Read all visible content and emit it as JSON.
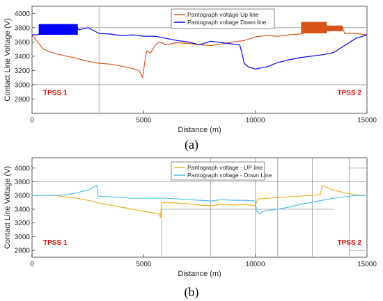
{
  "chart_data": [
    {
      "type": "line",
      "panel": "a",
      "xlabel": "Distance (m)",
      "ylabel": "Contact Line Voltage (V)",
      "xlim": [
        0,
        15000
      ],
      "ylim": [
        2600,
        4100
      ],
      "xticks": [
        0,
        5000,
        10000,
        15000
      ],
      "yticks": [
        2800,
        3000,
        3200,
        3400,
        3600,
        3800,
        4000
      ],
      "legend_position": "top-center",
      "grid": false,
      "annotations": [
        {
          "text": "TPSS 1",
          "x": 500,
          "y": 2860
        },
        {
          "text": "TPSS 2",
          "x": 14300,
          "y": 2860
        }
      ],
      "reference_lines": [
        {
          "orientation": "horizontal",
          "y": 3800,
          "x_from": 2100,
          "x_to": 15000
        },
        {
          "orientation": "horizontal",
          "y": 3000,
          "x_from": 0,
          "x_to": 15000
        },
        {
          "orientation": "vertical",
          "x": 3000,
          "y_from": 2600,
          "y_to": 4100
        }
      ],
      "series": [
        {
          "name": "Pantograph voltage Up line",
          "color": "#d95319",
          "x": [
            0,
            500,
            1000,
            2000,
            2500,
            3000,
            3500,
            4000,
            4500,
            4800,
            4950,
            5000,
            5100,
            5150,
            5300,
            5500,
            5700,
            6000,
            6500,
            7000,
            7500,
            8000,
            8500,
            9000,
            9500,
            9800,
            10000,
            10500,
            11000,
            11500,
            12000,
            12500,
            13000,
            13500,
            13900,
            14000,
            14500,
            15000
          ],
          "values": [
            3700,
            3500,
            3440,
            3370,
            3330,
            3300,
            3290,
            3260,
            3230,
            3200,
            3100,
            3210,
            3420,
            3480,
            3440,
            3550,
            3600,
            3560,
            3590,
            3580,
            3560,
            3550,
            3570,
            3600,
            3620,
            3650,
            3670,
            3690,
            3680,
            3700,
            3710,
            3750,
            3780,
            3790,
            3810,
            3720,
            3720,
            3700
          ],
          "bands": [
            {
              "x_from": 12050,
              "x_to": 13200,
              "min": 3720,
              "max": 3880
            },
            {
              "x_from": 13200,
              "x_to": 13900,
              "min": 3750,
              "max": 3830
            }
          ]
        },
        {
          "name": "Pantograph voltage Down line",
          "color": "#0000ff",
          "x": [
            0,
            200,
            2000,
            2100,
            2500,
            3000,
            3500,
            4000,
            4500,
            5000,
            5500,
            6000,
            6500,
            7000,
            7500,
            8000,
            8500,
            9000,
            9300,
            9400,
            9500,
            9700,
            10000,
            10500,
            11000,
            11500,
            12000,
            12500,
            13000,
            13500,
            14000,
            14500,
            15000
          ],
          "values": [
            3700,
            3700,
            3820,
            3770,
            3800,
            3720,
            3710,
            3690,
            3700,
            3680,
            3680,
            3650,
            3620,
            3600,
            3560,
            3610,
            3590,
            3570,
            3560,
            3450,
            3300,
            3250,
            3220,
            3250,
            3310,
            3350,
            3380,
            3400,
            3420,
            3450,
            3550,
            3650,
            3700
          ],
          "bands": [
            {
              "x_from": 300,
              "x_to": 2050,
              "min": 3700,
              "max": 3850
            }
          ]
        }
      ]
    },
    {
      "type": "line",
      "panel": "b",
      "xlabel": "Distance (m)",
      "ylabel": "Contact Line Voltage (V)",
      "xlim": [
        0,
        15000
      ],
      "ylim": [
        2700,
        4150
      ],
      "xticks": [
        0,
        5000,
        10000,
        15000
      ],
      "yticks": [
        2800,
        3000,
        3200,
        3400,
        3600,
        3800,
        4000
      ],
      "legend_position": "top-center",
      "grid": false,
      "annotations": [
        {
          "text": "TPSS 1",
          "x": 500,
          "y": 2880
        },
        {
          "text": "TPSS 2",
          "x": 14300,
          "y": 2880
        }
      ],
      "reference_lines": [
        {
          "orientation": "horizontal",
          "y": 3800,
          "x_from": 0,
          "x_to": 15000
        },
        {
          "orientation": "horizontal",
          "y": 3400,
          "x_from": 5800,
          "x_to": 13500
        },
        {
          "orientation": "horizontal",
          "y": 4000,
          "x_from": 14200,
          "x_to": 15000
        },
        {
          "orientation": "horizontal",
          "y": 2800,
          "x_from": 14200,
          "x_to": 15000
        },
        {
          "orientation": "vertical",
          "x": 5800,
          "y_from": 2700,
          "y_to": 3400
        },
        {
          "orientation": "vertical",
          "x": 8000,
          "y_from": 2700,
          "y_to": 4150
        },
        {
          "orientation": "vertical",
          "x": 10000,
          "y_from": 2700,
          "y_to": 4150
        },
        {
          "orientation": "vertical",
          "x": 11000,
          "y_from": 2700,
          "y_to": 4150
        },
        {
          "orientation": "vertical",
          "x": 12550,
          "y_from": 2700,
          "y_to": 4150
        },
        {
          "orientation": "vertical",
          "x": 14200,
          "y_from": 2700,
          "y_to": 4150
        }
      ],
      "series": [
        {
          "name": "Pantograph voltage - UP line",
          "color": "#edb120",
          "x": [
            0,
            1000,
            1500,
            2000,
            2500,
            3000,
            3500,
            4000,
            4500,
            5000,
            5500,
            5700,
            5750,
            5800,
            6000,
            6500,
            7000,
            7500,
            8000,
            8500,
            9000,
            9500,
            10000,
            10100,
            10500,
            11000,
            11500,
            12000,
            12500,
            12900,
            13000,
            13500,
            14000,
            14500,
            15000
          ],
          "values": [
            3600,
            3600,
            3580,
            3560,
            3530,
            3490,
            3460,
            3430,
            3400,
            3370,
            3340,
            3330,
            3280,
            3490,
            3500,
            3490,
            3480,
            3460,
            3450,
            3470,
            3460,
            3470,
            3450,
            3550,
            3560,
            3570,
            3580,
            3590,
            3600,
            3610,
            3750,
            3680,
            3640,
            3610,
            3600
          ]
        },
        {
          "name": "Pantograph voltage - Down Line",
          "color": "#4dbeee",
          "x": [
            0,
            1000,
            1500,
            2000,
            2500,
            2900,
            2950,
            3000,
            3500,
            4000,
            4500,
            5000,
            5500,
            6000,
            6500,
            7000,
            7500,
            8000,
            8500,
            9000,
            9500,
            10000,
            10050,
            10200,
            10300,
            10500,
            11000,
            11500,
            12000,
            12500,
            13000,
            13500,
            14000,
            14500,
            15000
          ],
          "values": [
            3600,
            3600,
            3610,
            3640,
            3680,
            3750,
            3600,
            3590,
            3580,
            3570,
            3560,
            3560,
            3560,
            3560,
            3550,
            3540,
            3530,
            3520,
            3540,
            3530,
            3530,
            3520,
            3380,
            3330,
            3360,
            3380,
            3400,
            3430,
            3470,
            3500,
            3530,
            3560,
            3580,
            3600,
            3600
          ]
        }
      ]
    }
  ],
  "panel_labels": [
    "(a)",
    "(b)"
  ]
}
